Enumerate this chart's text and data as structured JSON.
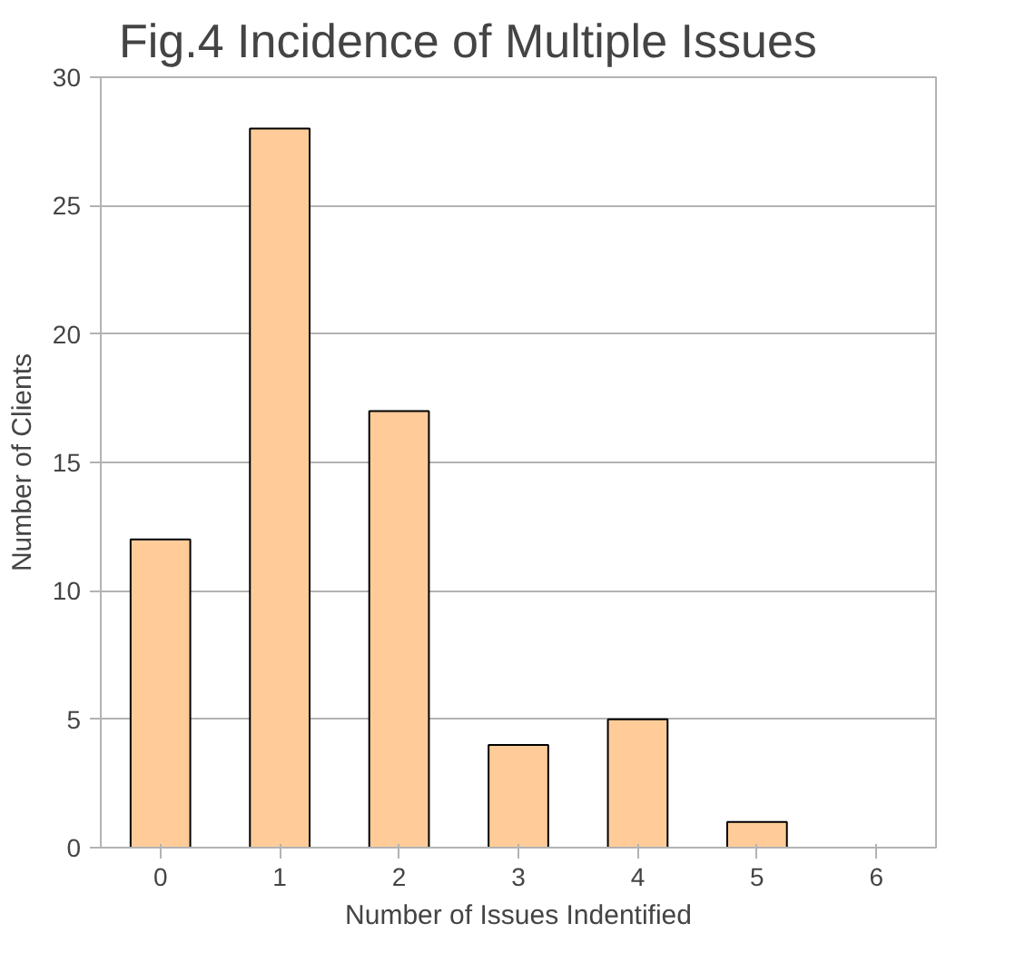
{
  "chart_data": {
    "type": "bar",
    "title": "Fig.4 Incidence of Multiple Issues",
    "xlabel": "Number of Issues Indentified",
    "ylabel": "Number of Clients",
    "categories": [
      "0",
      "1",
      "2",
      "3",
      "4",
      "5",
      "6"
    ],
    "values": [
      12,
      28,
      17,
      4,
      5,
      1,
      0
    ],
    "color": "#ffcc99",
    "ylim": [
      0,
      30
    ],
    "yticks": [
      0,
      5,
      10,
      15,
      20,
      25,
      30
    ],
    "grid": "y"
  }
}
